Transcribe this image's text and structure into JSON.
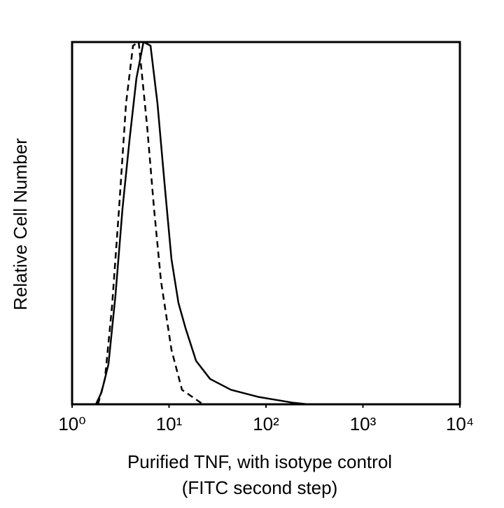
{
  "chart_data": {
    "type": "line",
    "x_label": [
      "Purified TNF, with isotype control",
      "(FITC second step)"
    ],
    "y_label": "Relative Cell Number",
    "x_scale": "log",
    "xlim": [
      1,
      10000
    ],
    "xticks": [
      {
        "value": 1,
        "label": "10⁰"
      },
      {
        "value": 10,
        "label": "10¹"
      },
      {
        "value": 100,
        "label": "10²"
      },
      {
        "value": 1000,
        "label": "10³"
      },
      {
        "value": 10000,
        "label": "10⁴"
      }
    ],
    "ylim": [
      0,
      100
    ],
    "grid": false,
    "series": [
      {
        "color": "#000000",
        "dash": false,
        "x": [
          1.76,
          2.01,
          2.37,
          2.8,
          3.31,
          3.91,
          4.61,
          5.45,
          6.44,
          7.6,
          8.98,
          10.6,
          12.5,
          14.8,
          19.0,
          26.5,
          43.5,
          84.7,
          194,
          271
        ],
        "values": [
          0,
          3.3,
          11,
          30,
          54,
          73,
          90,
          100,
          99,
          83,
          61,
          40,
          28,
          21,
          12,
          7,
          4,
          2,
          0.4,
          0
        ]
      },
      {
        "color": "#000000",
        "dash": true,
        "x": [
          1.85,
          2.18,
          2.58,
          3.05,
          3.6,
          4.25,
          4.86,
          5.93,
          7.0,
          8.26,
          10.6,
          13.6,
          22.4
        ],
        "values": [
          0,
          7,
          27,
          54,
          83,
          99,
          100,
          77,
          54,
          34,
          15,
          4,
          0
        ]
      }
    ]
  }
}
